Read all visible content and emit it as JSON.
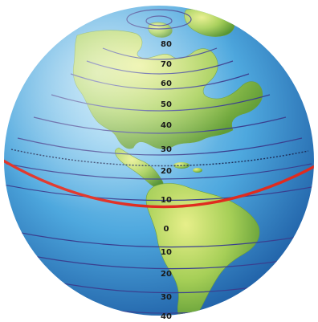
{
  "diagram": {
    "colors": {
      "ocean_light": "#a8dcf6",
      "ocean_mid": "#4ea8de",
      "ocean_dark": "#1f5fa6",
      "land_light": "#d9e77a",
      "land_mid": "#93c64a",
      "land_dark": "#4e8f2e",
      "latitude_line": "#3a3f8f",
      "tropic_line": "#1c2d5a",
      "equator": "#e02b1f",
      "label": "#1a1a1a"
    },
    "latitude_labels": [
      {
        "id": "lat-80n",
        "text": "80"
      },
      {
        "id": "lat-70n",
        "text": "70"
      },
      {
        "id": "lat-60n",
        "text": "60"
      },
      {
        "id": "lat-50n",
        "text": "50"
      },
      {
        "id": "lat-40n",
        "text": "40"
      },
      {
        "id": "lat-30n",
        "text": "30"
      },
      {
        "id": "lat-20n",
        "text": "20"
      },
      {
        "id": "lat-10n",
        "text": "10"
      },
      {
        "id": "lat-0",
        "text": "0"
      },
      {
        "id": "lat-10s",
        "text": "10"
      },
      {
        "id": "lat-20s",
        "text": "20"
      },
      {
        "id": "lat-30s",
        "text": "30"
      },
      {
        "id": "lat-40s",
        "text": "40"
      }
    ],
    "icons": {
      "globe": "globe-icon"
    }
  }
}
